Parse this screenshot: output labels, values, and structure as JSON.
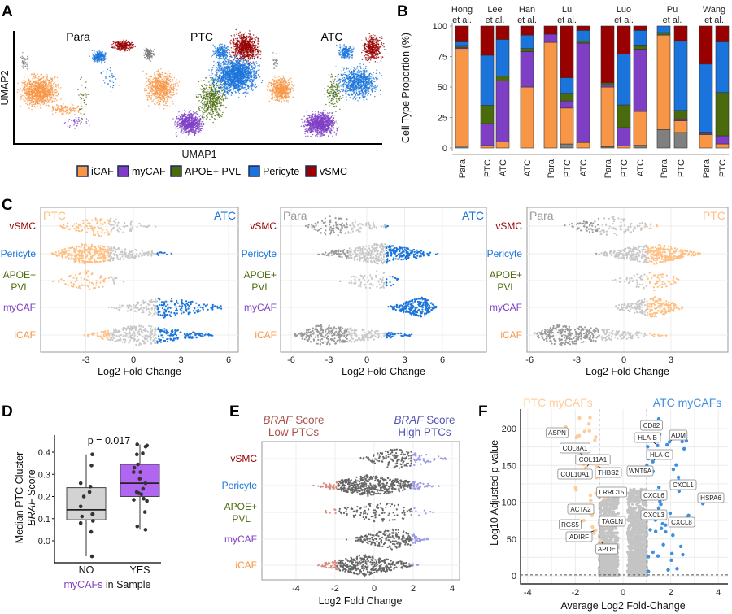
{
  "panel_labels": {
    "a": "A",
    "b": "B",
    "c": "C",
    "d": "D",
    "e": "E",
    "f": "F"
  },
  "colors": {
    "iCAF": "#F79646",
    "myCAF": "#7E3FC4",
    "APOE+ PVL": "#4A6B0C",
    "Pericyte": "#1A74DB",
    "vSMC": "#990000",
    "other": "#808080"
  },
  "legend": [
    {
      "label": "iCAF",
      "color": "#F79646"
    },
    {
      "label": "myCAF",
      "color": "#7E3FC4"
    },
    {
      "label": "APOE+ PVL",
      "color": "#4A6B0C"
    },
    {
      "label": "Pericyte",
      "color": "#1A74DB"
    },
    {
      "label": "vSMC",
      "color": "#990000"
    }
  ],
  "chart_data": [
    {
      "id": "A",
      "type": "scatter",
      "xlabel": "UMAP1",
      "ylabel": "UMAP2",
      "facets": [
        "Para",
        "PTC",
        "ATC"
      ]
    },
    {
      "id": "B",
      "type": "bar",
      "stacked": true,
      "ylabel": "Cell Type Proportion (%)",
      "ylim": [
        0,
        100
      ],
      "yticks": [
        "0",
        "25",
        "50",
        "75",
        "100"
      ],
      "series": [
        {
          "key": "other",
          "color": "#808080"
        },
        {
          "key": "iCAF",
          "color": "#F79646"
        },
        {
          "key": "myCAF",
          "color": "#7E3FC4"
        },
        {
          "key": "APOE+ PVL",
          "color": "#4A6B0C"
        },
        {
          "key": "Pericyte",
          "color": "#1A74DB"
        },
        {
          "key": "vSMC",
          "color": "#990000"
        }
      ],
      "groups": [
        {
          "title1": "Hong",
          "title2": "et al.",
          "bars": [
            {
              "category": "Para",
              "values": [
                1.5,
                80,
                1,
                1.5,
                3,
                13
              ]
            }
          ]
        },
        {
          "title1": "Lee",
          "title2": "et al.",
          "bars": [
            {
              "category": "PTC",
              "values": [
                0,
                2,
                18,
                15,
                41,
                24
              ]
            },
            {
              "category": "ATC",
              "values": [
                0,
                5,
                50,
                4,
                30,
                11
              ]
            }
          ]
        },
        {
          "title1": "Han",
          "title2": "et al.",
          "bars": [
            {
              "category": "ATC",
              "values": [
                0,
                50,
                29,
                2.5,
                11,
                7.5
              ]
            }
          ]
        },
        {
          "title1": "Lu",
          "title2": "et al.",
          "bars": [
            {
              "category": "Para",
              "values": [
                0,
                86.6,
                6.7,
                0,
                0,
                6.7
              ]
            },
            {
              "category": "PTC",
              "values": [
                3.3,
                29.5,
                5.8,
                6.3,
                12.7,
                42.4
              ]
            },
            {
              "category": "ATC",
              "values": [
                0,
                4.5,
                81.5,
                1.7,
                8.7,
                3.6
              ]
            }
          ]
        },
        {
          "title1": "Luo",
          "title2": "et al.",
          "bars": [
            {
              "category": "Para",
              "values": [
                1,
                49,
                2,
                1.5,
                0,
                46.5
              ]
            },
            {
              "category": "PTC",
              "values": [
                0,
                1.8,
                14.9,
                18.6,
                41.7,
                23
              ]
            },
            {
              "category": "ATC",
              "values": [
                2.2,
                27.8,
                51,
                3.4,
                12,
                3.6
              ]
            }
          ]
        },
        {
          "title1": "Pu",
          "title2": "et al.",
          "bars": [
            {
              "category": "Para",
              "values": [
                15,
                77.6,
                0,
                2,
                5.4,
                0
              ]
            },
            {
              "category": "PTC",
              "values": [
                12.7,
                9.6,
                1.6,
                6.9,
                56.7,
                12.5
              ]
            }
          ]
        },
        {
          "title1": "Wang",
          "title2": "et al.",
          "bars": [
            {
              "category": "Para",
              "values": [
                0,
                11,
                1,
                1,
                55.8,
                31.2
              ]
            },
            {
              "category": "PTC",
              "values": [
                0,
                3.3,
                6.7,
                35.5,
                41.5,
                13
              ]
            }
          ]
        }
      ]
    },
    {
      "id": "C",
      "type": "scatter",
      "subtype": "beeswarm",
      "xlabel": "Log2 Fold Change",
      "rows": [
        {
          "label": "vSMC",
          "label_color": "#990000"
        },
        {
          "label": "Pericyte",
          "label_color": "#1A74DB"
        },
        {
          "label": "APOE+",
          "label2": "PVL",
          "label_color": "#4A6B0C"
        },
        {
          "label": "myCAF",
          "label_color": "#7E3FC4"
        },
        {
          "label": "iCAF",
          "label_color": "#F79646"
        }
      ],
      "facets": [
        {
          "left_label": "PTC",
          "right_label": "ATC",
          "left_color": "#FFBF80",
          "right_color": "#1A74DB",
          "xticks": [
            "-3",
            "0",
            "3",
            "6"
          ],
          "xlim": [
            -5.5,
            6.5
          ],
          "distributions": [
            [
              -5,
              -2,
              1.5
            ],
            [
              -5.3,
              -3.2,
              2.6
            ],
            [
              -5.2,
              -3,
              -0.3
            ],
            [
              -1.8,
              2,
              6.1
            ],
            [
              -3.2,
              0.3,
              5.3
            ]
          ]
        },
        {
          "left_label": "Para",
          "right_label": "ATC",
          "left_color": "#999999",
          "right_color": "#1A74DB",
          "xticks": [
            "-6",
            "-3",
            "0",
            "3",
            "6"
          ],
          "xlim": [
            -6.5,
            7
          ],
          "distributions": [
            [
              -5,
              -3,
              2.2
            ],
            [
              -4,
              1,
              6
            ],
            [
              -2.5,
              1,
              3
            ],
            [
              1.5,
              4.5,
              5.6
            ],
            [
              -6,
              -3.8,
              4
            ]
          ]
        },
        {
          "left_label": "Para",
          "right_label": "PTC",
          "left_color": "#999999",
          "right_color": "#FFBF80",
          "xticks": [
            "-6",
            "-3",
            "0",
            "3"
          ],
          "xlim": [
            -6.5,
            6.5
          ],
          "distributions": [
            [
              -4,
              -1,
              2.5
            ],
            [
              -2,
              2,
              5
            ],
            [
              -1,
              2,
              4
            ],
            [
              -1,
              2,
              4
            ],
            [
              -6,
              -4.3,
              3
            ]
          ]
        }
      ]
    },
    {
      "id": "D",
      "type": "box",
      "ylabel_line1": "Median PTC Cluster",
      "ylabel_italic": "BRAF",
      "ylabel_rest": " Score",
      "xlabel_highlight": "myCAFs",
      "xlabel_rest": " in Sample",
      "annotation": "p = 0.017",
      "ylim": [
        -0.1,
        0.45
      ],
      "yticks": [
        "0.0",
        "0.1",
        "0.2",
        "0.3",
        "0.4"
      ],
      "categories": [
        "NO",
        "YES"
      ],
      "boxes": [
        {
          "category": "NO",
          "fill": "#D3D3D3",
          "whisker_low": -0.07,
          "q1": 0.095,
          "median": 0.14,
          "q3": 0.24,
          "whisker_high": 0.39,
          "points": [
            0.39,
            0.34,
            0.26,
            0.245,
            0.22,
            0.2,
            0.155,
            0.12,
            0.12,
            0.11,
            0.09,
            0.08,
            0.04,
            -0.07
          ]
        },
        {
          "category": "YES",
          "fill": "#B066F0",
          "whisker_low": 0.05,
          "q1": 0.2,
          "median": 0.26,
          "q3": 0.345,
          "whisker_high": 0.435,
          "points": [
            0.435,
            0.43,
            0.425,
            0.395,
            0.39,
            0.345,
            0.33,
            0.31,
            0.31,
            0.28,
            0.26,
            0.235,
            0.22,
            0.215,
            0.21,
            0.19,
            0.185,
            0.18,
            0.13,
            0.065,
            0.05
          ]
        }
      ]
    },
    {
      "id": "E",
      "type": "scatter",
      "subtype": "beeswarm",
      "xlabel": "Log2 Fold Change",
      "xticks": [
        "-4",
        "-2",
        "0",
        "2",
        "4"
      ],
      "xlim": [
        -5.5,
        4.5
      ],
      "left_title_italic": "BRAF",
      "left_title_rest": " Score",
      "left_title_line2": "Low PTCs",
      "right_title_italic": "BRAF",
      "right_title_rest": " Score",
      "right_title_line2": "High PTCs",
      "left_color": "#A8524C",
      "right_color": "#5555B5",
      "rows": [
        {
          "label": "vSMC",
          "label_color": "#990000"
        },
        {
          "label": "Pericyte",
          "label_color": "#1A74DB"
        },
        {
          "label": "APOE+",
          "label2": "PVL",
          "label_color": "#4A6B0C"
        },
        {
          "label": "myCAF",
          "label_color": "#7E3FC4"
        },
        {
          "label": "iCAF",
          "label_color": "#F79646"
        }
      ],
      "distributions": [
        [
          -0.7,
          1,
          4
        ],
        [
          -3.2,
          -0.3,
          3.4
        ],
        [
          -3.1,
          0.5,
          3.1
        ],
        [
          -1.5,
          1,
          2.9
        ],
        [
          -3.1,
          -0.5,
          2.4
        ]
      ]
    },
    {
      "id": "F",
      "type": "scatter",
      "subtype": "volcano",
      "xlabel": "Average Log2 Fold-Change",
      "ylabel": "-Log10 Adjusted p value",
      "xlim": [
        -4.2,
        4.4
      ],
      "ylim": [
        -10,
        225
      ],
      "xticks": [
        "-4",
        "-2",
        "0",
        "2",
        "4"
      ],
      "yticks": [
        "0",
        "50",
        "100",
        "150",
        "200"
      ],
      "left_title": "PTC myCAFs",
      "right_title": "ATC myCAFs",
      "left_color": "#FFCC99",
      "right_color": "#3D8FE0",
      "fc_threshold": 1,
      "labeled_genes": [
        {
          "gene": "ASPN",
          "x": -2.4,
          "y": 202
        },
        {
          "gene": "COL8A1",
          "x": -1.65,
          "y": 162
        },
        {
          "gene": "COL11A1",
          "x": -1.55,
          "y": 147
        },
        {
          "gene": "COL10A1",
          "x": -1.7,
          "y": 140
        },
        {
          "gene": "THBS2",
          "x": -1.1,
          "y": 150
        },
        {
          "gene": "LRRC15",
          "x": -0.75,
          "y": 106
        },
        {
          "gene": "ACTA2",
          "x": -1.3,
          "y": 82
        },
        {
          "gene": "RGS5",
          "x": -1.65,
          "y": 75
        },
        {
          "gene": "TAGLN",
          "x": -0.75,
          "y": 68
        },
        {
          "gene": "ADIRF",
          "x": -1.15,
          "y": 62
        },
        {
          "gene": "APOE",
          "x": -0.95,
          "y": 48
        },
        {
          "gene": "CD82",
          "x": 1.5,
          "y": 213
        },
        {
          "gene": "HLA-B",
          "x": 1.45,
          "y": 177
        },
        {
          "gene": "ADM",
          "x": 1.95,
          "y": 182
        },
        {
          "gene": "HLA-C",
          "x": 1.25,
          "y": 155
        },
        {
          "gene": "WNT5A",
          "x": 1.0,
          "y": 150
        },
        {
          "gene": "CXCL1",
          "x": 2.35,
          "y": 115
        },
        {
          "gene": "HSPA6",
          "x": 3.35,
          "y": 98
        },
        {
          "gene": "CXCL6",
          "x": 1.55,
          "y": 101
        },
        {
          "gene": "CXCL3",
          "x": 1.5,
          "y": 92
        },
        {
          "gene": "CXCL8",
          "x": 2.75,
          "y": 82
        }
      ]
    }
  ]
}
